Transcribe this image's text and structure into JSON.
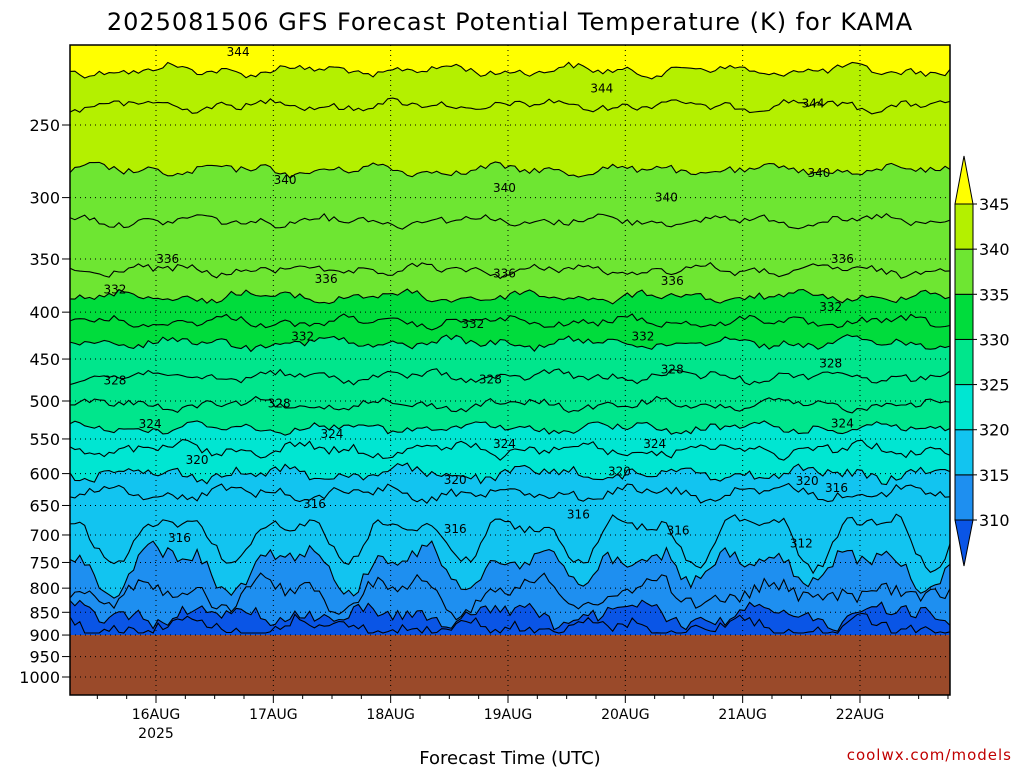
{
  "chart_data": {
    "type": "contour",
    "title": "2025081506 GFS Forecast Potential Temperature (K) for KAMA",
    "xlabel": "Forecast Time (UTC)",
    "ylabel": "",
    "x_ticks": [
      "16AUG",
      "17AUG",
      "18AUG",
      "19AUG",
      "20AUG",
      "21AUG",
      "22AUG"
    ],
    "x_year": "2025",
    "xlim_days": [
      15.25,
      22.75
    ],
    "y_ticks": [
      250,
      300,
      350,
      400,
      450,
      500,
      550,
      600,
      650,
      700,
      750,
      800,
      850,
      900,
      950,
      1000
    ],
    "ylim_hpa": [
      200,
      1050
    ],
    "y_scale": "log",
    "surface_pressure_hpa": 900,
    "contour_interval_k": 2,
    "grid": true,
    "colorbar": {
      "ticks": [
        310,
        315,
        320,
        325,
        330,
        335,
        340,
        345
      ],
      "fills": [
        {
          "from": 305,
          "to": 310,
          "color": "#0a55e6"
        },
        {
          "from": 310,
          "to": 315,
          "color": "#1e8ff0"
        },
        {
          "from": 315,
          "to": 320,
          "color": "#12c4f0"
        },
        {
          "from": 320,
          "to": 325,
          "color": "#00e6d2"
        },
        {
          "from": 325,
          "to": 330,
          "color": "#00e68c"
        },
        {
          "from": 330,
          "to": 335,
          "color": "#00dc3c"
        },
        {
          "from": 335,
          "to": 340,
          "color": "#6ee632"
        },
        {
          "from": 340,
          "to": 345,
          "color": "#b4f000"
        },
        {
          "from": 345,
          "to": 350,
          "color": "#ffff00"
        }
      ],
      "position": "right"
    },
    "contour_levels": [
      {
        "theta": 344,
        "p_hpa": 218
      },
      {
        "theta": 342,
        "p_hpa": 238
      },
      {
        "theta": 340,
        "p_hpa": 280
      },
      {
        "theta": 338,
        "p_hpa": 318
      },
      {
        "theta": 336,
        "p_hpa": 360
      },
      {
        "theta": 334,
        "p_hpa": 385
      },
      {
        "theta": 332,
        "p_hpa": 410
      },
      {
        "theta": 330,
        "p_hpa": 432
      },
      {
        "theta": 328,
        "p_hpa": 470
      },
      {
        "theta": 326,
        "p_hpa": 505
      },
      {
        "theta": 324,
        "p_hpa": 535
      },
      {
        "theta": 322,
        "p_hpa": 565
      },
      {
        "theta": 320,
        "p_hpa": 600
      },
      {
        "theta": 318,
        "p_hpa": 630
      },
      {
        "theta": 316,
        "p_hpa": 680
      },
      {
        "theta": 314,
        "p_hpa": 740
      },
      {
        "theta": 312,
        "p_hpa": 800
      },
      {
        "theta": 310,
        "p_hpa": 850
      },
      {
        "theta": 308,
        "p_hpa": 880
      }
    ],
    "contour_labels": [
      {
        "text": "344",
        "day": 16.7,
        "p_hpa": 208
      },
      {
        "text": "344",
        "day": 19.8,
        "p_hpa": 228
      },
      {
        "text": "344",
        "day": 21.6,
        "p_hpa": 237
      },
      {
        "text": "340",
        "day": 17.1,
        "p_hpa": 287
      },
      {
        "text": "340",
        "day": 18.97,
        "p_hpa": 293
      },
      {
        "text": "340",
        "day": 20.35,
        "p_hpa": 300
      },
      {
        "text": "340",
        "day": 21.65,
        "p_hpa": 282
      },
      {
        "text": "336",
        "day": 16.1,
        "p_hpa": 350
      },
      {
        "text": "336",
        "day": 17.45,
        "p_hpa": 368
      },
      {
        "text": "336",
        "day": 18.97,
        "p_hpa": 363
      },
      {
        "text": "336",
        "day": 20.4,
        "p_hpa": 370
      },
      {
        "text": "336",
        "day": 21.85,
        "p_hpa": 350
      },
      {
        "text": "332",
        "day": 15.65,
        "p_hpa": 378
      },
      {
        "text": "332",
        "day": 17.25,
        "p_hpa": 425
      },
      {
        "text": "332",
        "day": 18.7,
        "p_hpa": 412
      },
      {
        "text": "332",
        "day": 20.15,
        "p_hpa": 425
      },
      {
        "text": "332",
        "day": 21.75,
        "p_hpa": 395
      },
      {
        "text": "328",
        "day": 15.65,
        "p_hpa": 475
      },
      {
        "text": "328",
        "day": 17.05,
        "p_hpa": 503
      },
      {
        "text": "328",
        "day": 18.85,
        "p_hpa": 474
      },
      {
        "text": "328",
        "day": 20.4,
        "p_hpa": 462
      },
      {
        "text": "328",
        "day": 21.75,
        "p_hpa": 455
      },
      {
        "text": "324",
        "day": 15.95,
        "p_hpa": 530
      },
      {
        "text": "324",
        "day": 17.5,
        "p_hpa": 543
      },
      {
        "text": "324",
        "day": 18.97,
        "p_hpa": 557
      },
      {
        "text": "324",
        "day": 20.25,
        "p_hpa": 557
      },
      {
        "text": "324",
        "day": 21.85,
        "p_hpa": 529
      },
      {
        "text": "320",
        "day": 16.35,
        "p_hpa": 580
      },
      {
        "text": "320",
        "day": 18.55,
        "p_hpa": 610
      },
      {
        "text": "320",
        "day": 19.95,
        "p_hpa": 597
      },
      {
        "text": "320",
        "day": 21.55,
        "p_hpa": 611
      },
      {
        "text": "316",
        "day": 17.35,
        "p_hpa": 648
      },
      {
        "text": "316",
        "day": 16.2,
        "p_hpa": 705
      },
      {
        "text": "316",
        "day": 18.55,
        "p_hpa": 690
      },
      {
        "text": "316",
        "day": 19.6,
        "p_hpa": 665
      },
      {
        "text": "316",
        "day": 20.45,
        "p_hpa": 692
      },
      {
        "text": "316",
        "day": 21.8,
        "p_hpa": 622
      },
      {
        "text": "312",
        "day": 21.5,
        "p_hpa": 715
      }
    ],
    "credit": "coolwx.com/models"
  }
}
